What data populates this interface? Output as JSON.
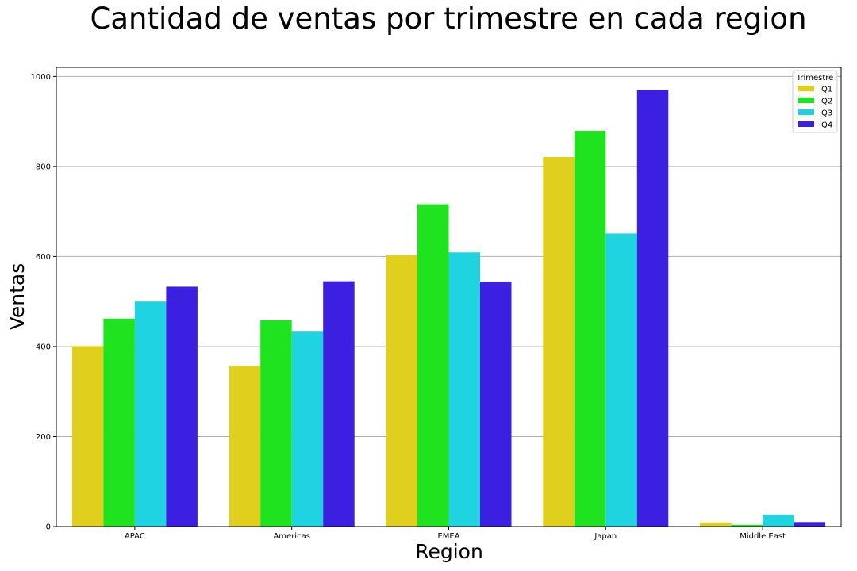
{
  "chart_data": {
    "type": "bar",
    "title": "Cantidad de ventas por trimestre en cada region",
    "xlabel": "Region",
    "ylabel": "Ventas",
    "categories": [
      "APAC",
      "Americas",
      "EMEA",
      "Japan",
      "Middle East"
    ],
    "yticks": [
      0,
      200,
      400,
      600,
      800,
      1000
    ],
    "ylim": [
      0,
      1020
    ],
    "grid": "horizontal",
    "legend": {
      "title": "Trimestre",
      "placement": "top-right"
    },
    "series": [
      {
        "name": "Q1",
        "color": "#e1cf1d",
        "values": [
          401,
          357,
          603,
          821,
          9
        ]
      },
      {
        "name": "Q2",
        "color": "#1ee31e",
        "values": [
          462,
          458,
          716,
          879,
          4
        ]
      },
      {
        "name": "Q3",
        "color": "#1fd3e1",
        "values": [
          500,
          433,
          609,
          651,
          26
        ]
      },
      {
        "name": "Q4",
        "color": "#3b20e1",
        "values": [
          533,
          545,
          544,
          970,
          10
        ]
      }
    ]
  }
}
